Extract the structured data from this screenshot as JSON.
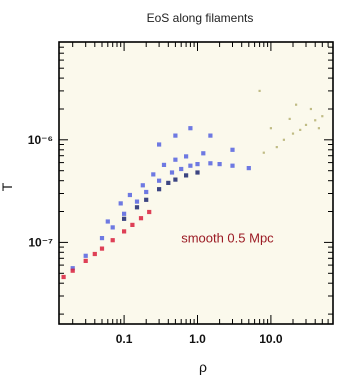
{
  "chart_data": {
    "type": "scatter",
    "title": "EoS along filaments",
    "xlabel": "ρ",
    "ylabel": "T",
    "x_scale": "log",
    "y_scale": "log",
    "xlim": [
      0.013,
      70
    ],
    "ylim": [
      1.6e-08,
      9e-06
    ],
    "x_ticks": [
      {
        "value": 0.1,
        "label": "0.1"
      },
      {
        "value": 1.0,
        "label": "1.0"
      },
      {
        "value": 10.0,
        "label": "10.0"
      }
    ],
    "y_ticks": [
      {
        "value": 1e-07,
        "label": "10⁻⁷"
      },
      {
        "value": 1e-06,
        "label": "10⁻⁶"
      }
    ],
    "grid": false,
    "annotations": [
      {
        "text": "smooth 0.5 Mpc",
        "x": 0.6,
        "y": 1e-07,
        "color": "#9b1b24"
      }
    ],
    "series": [
      {
        "color": "#5563e0",
        "points": [
          [
            0.02,
            5.6e-08
          ],
          [
            0.03,
            7.4e-08
          ],
          [
            0.05,
            1.1e-07
          ],
          [
            0.07,
            1.4e-07
          ],
          [
            0.1,
            1.9e-07
          ],
          [
            0.15,
            2.5e-07
          ],
          [
            0.2,
            3.1e-07
          ],
          [
            0.3,
            4e-07
          ],
          [
            0.45,
            4.8e-07
          ],
          [
            0.6,
            5.2e-07
          ],
          [
            0.8,
            5.6e-07
          ],
          [
            1.0,
            5.8e-07
          ],
          [
            1.5,
            5.9e-07
          ],
          [
            2.0,
            5.8e-07
          ],
          [
            3.0,
            5.6e-07
          ],
          [
            5.0,
            5.3e-07
          ],
          [
            0.06,
            1.6e-07
          ],
          [
            0.09,
            2.4e-07
          ],
          [
            0.12,
            2.9e-07
          ],
          [
            0.18,
            3.6e-07
          ],
          [
            0.25,
            4.6e-07
          ],
          [
            0.35,
            5.7e-07
          ],
          [
            0.5,
            6.4e-07
          ],
          [
            0.7,
            6.9e-07
          ],
          [
            1.2,
            7.4e-07
          ],
          [
            0.3,
            9e-07
          ],
          [
            0.5,
            1.1e-06
          ],
          [
            0.8,
            1.3e-06
          ],
          [
            1.5,
            1.1e-06
          ],
          [
            3.0,
            8e-07
          ]
        ]
      },
      {
        "color": "#1a2670",
        "points": [
          [
            0.1,
            1.7e-07
          ],
          [
            0.15,
            2.2e-07
          ],
          [
            0.2,
            2.6e-07
          ],
          [
            0.3,
            3.3e-07
          ],
          [
            0.4,
            3.8e-07
          ],
          [
            0.5,
            4.1e-07
          ],
          [
            0.7,
            4.5e-07
          ],
          [
            1.0,
            4.8e-07
          ]
        ]
      },
      {
        "color": "#d8203c",
        "points": [
          [
            0.015,
            4.6e-08
          ],
          [
            0.02,
            5.3e-08
          ],
          [
            0.03,
            6.6e-08
          ],
          [
            0.04,
            7.7e-08
          ],
          [
            0.05,
            8.7e-08
          ],
          [
            0.07,
            1.05e-07
          ],
          [
            0.1,
            1.28e-07
          ],
          [
            0.13,
            1.48e-07
          ],
          [
            0.17,
            1.72e-07
          ],
          [
            0.22,
            1.98e-07
          ]
        ]
      },
      {
        "color": "#b9b57a",
        "points": [
          [
            8,
            7.5e-07
          ],
          [
            12,
            8.5e-07
          ],
          [
            15,
            1e-06
          ],
          [
            20,
            1.15e-06
          ],
          [
            25,
            1.25e-06
          ],
          [
            30,
            1.4e-06
          ],
          [
            40,
            1.55e-06
          ],
          [
            50,
            1.7e-06
          ],
          [
            10,
            1.3e-06
          ],
          [
            18,
            1.6e-06
          ],
          [
            22,
            2.2e-06
          ],
          [
            7,
            3e-06
          ],
          [
            35,
            2e-06
          ],
          [
            45,
            1.3e-06
          ]
        ]
      }
    ]
  }
}
